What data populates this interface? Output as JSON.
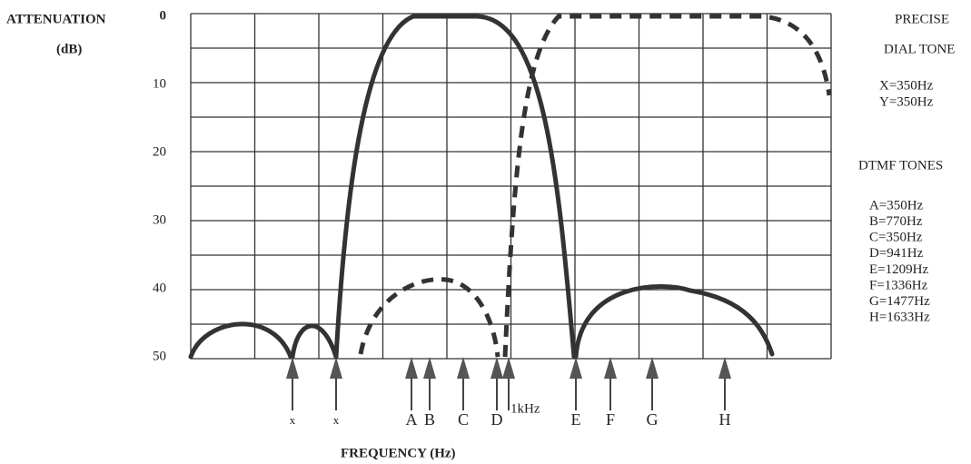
{
  "y_axis": {
    "title": "ATTENUATION",
    "unit": "(dB)",
    "ticks": [
      "0",
      "10",
      "20",
      "30",
      "40",
      "50"
    ]
  },
  "x_axis": {
    "title": "FREQUENCY (Hz)",
    "markers": [
      "x",
      "x",
      "A",
      "B",
      "C",
      "D",
      "E",
      "F",
      "G",
      "H"
    ],
    "note": "1kHz"
  },
  "legend": {
    "precise": {
      "title": "PRECISE",
      "subtitle": "DIAL TONE",
      "items": [
        "X=350Hz",
        "Y=350Hz"
      ]
    },
    "dtmf": {
      "title": "DTMF TONES",
      "items": [
        "A=350Hz",
        "B=770Hz",
        "C=350Hz",
        "D=941Hz",
        "E=1209Hz",
        "F=1336Hz",
        "G=1477Hz",
        "H=1633Hz"
      ]
    }
  }
}
